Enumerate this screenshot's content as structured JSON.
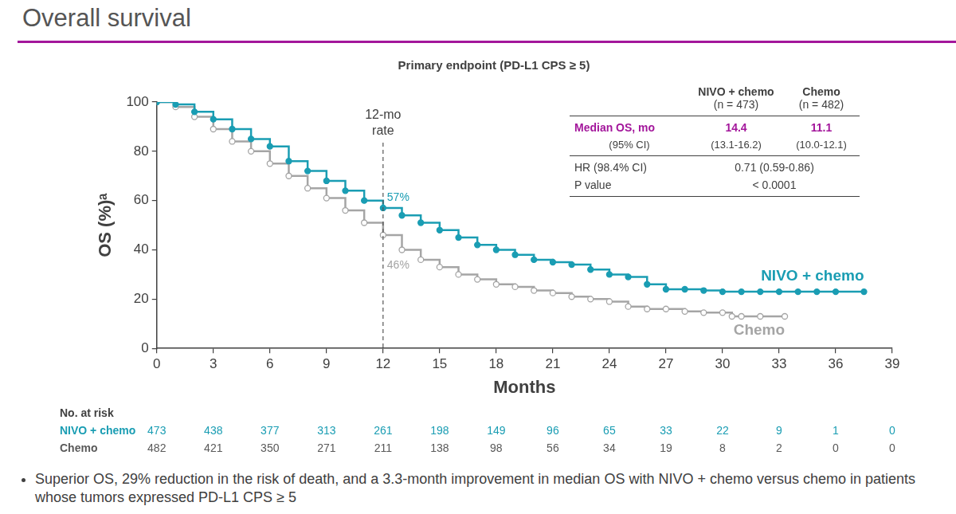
{
  "header": {
    "title": "Overall survival"
  },
  "chart_data": {
    "type": "line",
    "title": "Primary endpoint (PD-L1 CPS ≥ 5)",
    "x_label": "Months",
    "y_label": "OS (%)ᵃ",
    "xlim": [
      0,
      39
    ],
    "xticks": [
      0,
      3,
      6,
      9,
      12,
      15,
      18,
      21,
      24,
      27,
      30,
      33,
      36,
      39
    ],
    "ylim": [
      0,
      100
    ],
    "yticks": [
      0,
      20,
      40,
      60,
      80,
      100
    ],
    "grid": false,
    "series": [
      {
        "name": "NIVO + chemo",
        "color": "#1a9db3",
        "line_style": "step",
        "marker": "circle",
        "x": [
          0,
          1,
          2,
          3,
          4,
          5,
          6,
          7,
          8,
          9,
          10,
          11,
          12,
          13,
          14,
          15,
          16,
          17,
          18,
          19,
          20,
          21,
          22,
          23,
          24,
          25,
          26,
          27,
          28,
          29,
          30,
          31,
          32,
          33,
          34,
          35,
          36,
          37.5
        ],
        "values": [
          100,
          99,
          96,
          93,
          89,
          85,
          82,
          76,
          72,
          68,
          64,
          60,
          57,
          54,
          51,
          48,
          45,
          42,
          40,
          38,
          36,
          35,
          34,
          32,
          30,
          29,
          26,
          24,
          24,
          23.5,
          23,
          23,
          23,
          23,
          23,
          23,
          23,
          23
        ]
      },
      {
        "name": "Chemo",
        "color": "#a5a5a5",
        "line_style": "step",
        "marker": "circle_open",
        "x": [
          0,
          1,
          2,
          3,
          4,
          5,
          6,
          7,
          8,
          9,
          10,
          11,
          12,
          13,
          14,
          15,
          16,
          17,
          18,
          19,
          20,
          21,
          22,
          23,
          24,
          25,
          26,
          27,
          28,
          29,
          30,
          30.5,
          31,
          32,
          33.3
        ],
        "values": [
          100,
          98,
          94,
          89,
          84,
          80,
          75,
          70,
          65,
          61,
          56,
          51,
          46,
          40,
          36,
          33,
          30,
          28,
          26,
          25,
          23.5,
          22.5,
          21,
          20,
          19,
          17,
          16,
          16,
          15,
          14.5,
          14.5,
          13,
          13,
          13,
          13
        ]
      }
    ],
    "annotations": [
      {
        "text": "12-mo rate",
        "x": 12,
        "line_style": "dashed"
      },
      {
        "text": "57%",
        "x": 12,
        "y": 57,
        "series": "NIVO + chemo"
      },
      {
        "text": "46%",
        "x": 12,
        "y": 46,
        "series": "Chemo"
      }
    ]
  },
  "stats_table": {
    "columns": [
      [
        "NIVO + chemo",
        "(n = 473)"
      ],
      [
        "Chemo",
        "(n = 482)"
      ]
    ],
    "rows": [
      {
        "label": "Median OS, mo",
        "cells": [
          "14.4",
          "11.1"
        ]
      },
      {
        "label": "(95% CI)",
        "cells": [
          "(13.1-16.2)",
          "(10.0-12.1)"
        ]
      },
      {
        "label": "HR (98.4% CI)",
        "cells": [
          "0.71 (0.59-0.86)"
        ]
      },
      {
        "label": "P value",
        "cells": [
          "< 0.0001"
        ]
      }
    ]
  },
  "risk_table": {
    "title": "No. at risk",
    "rows": [
      {
        "name": "NIVO + chemo",
        "values": [
          473,
          438,
          377,
          313,
          261,
          198,
          149,
          96,
          65,
          33,
          22,
          9,
          1,
          0
        ]
      },
      {
        "name": "Chemo",
        "values": [
          482,
          421,
          350,
          271,
          211,
          138,
          98,
          56,
          34,
          19,
          8,
          2,
          0,
          0
        ]
      }
    ]
  },
  "notes": [
    "Superior OS, 29% reduction in the risk of death, and a 3.3-month improvement in median OS with NIVO + chemo versus chemo in patients whose tumors expressed PD-L1 CPS ≥ 5"
  ]
}
